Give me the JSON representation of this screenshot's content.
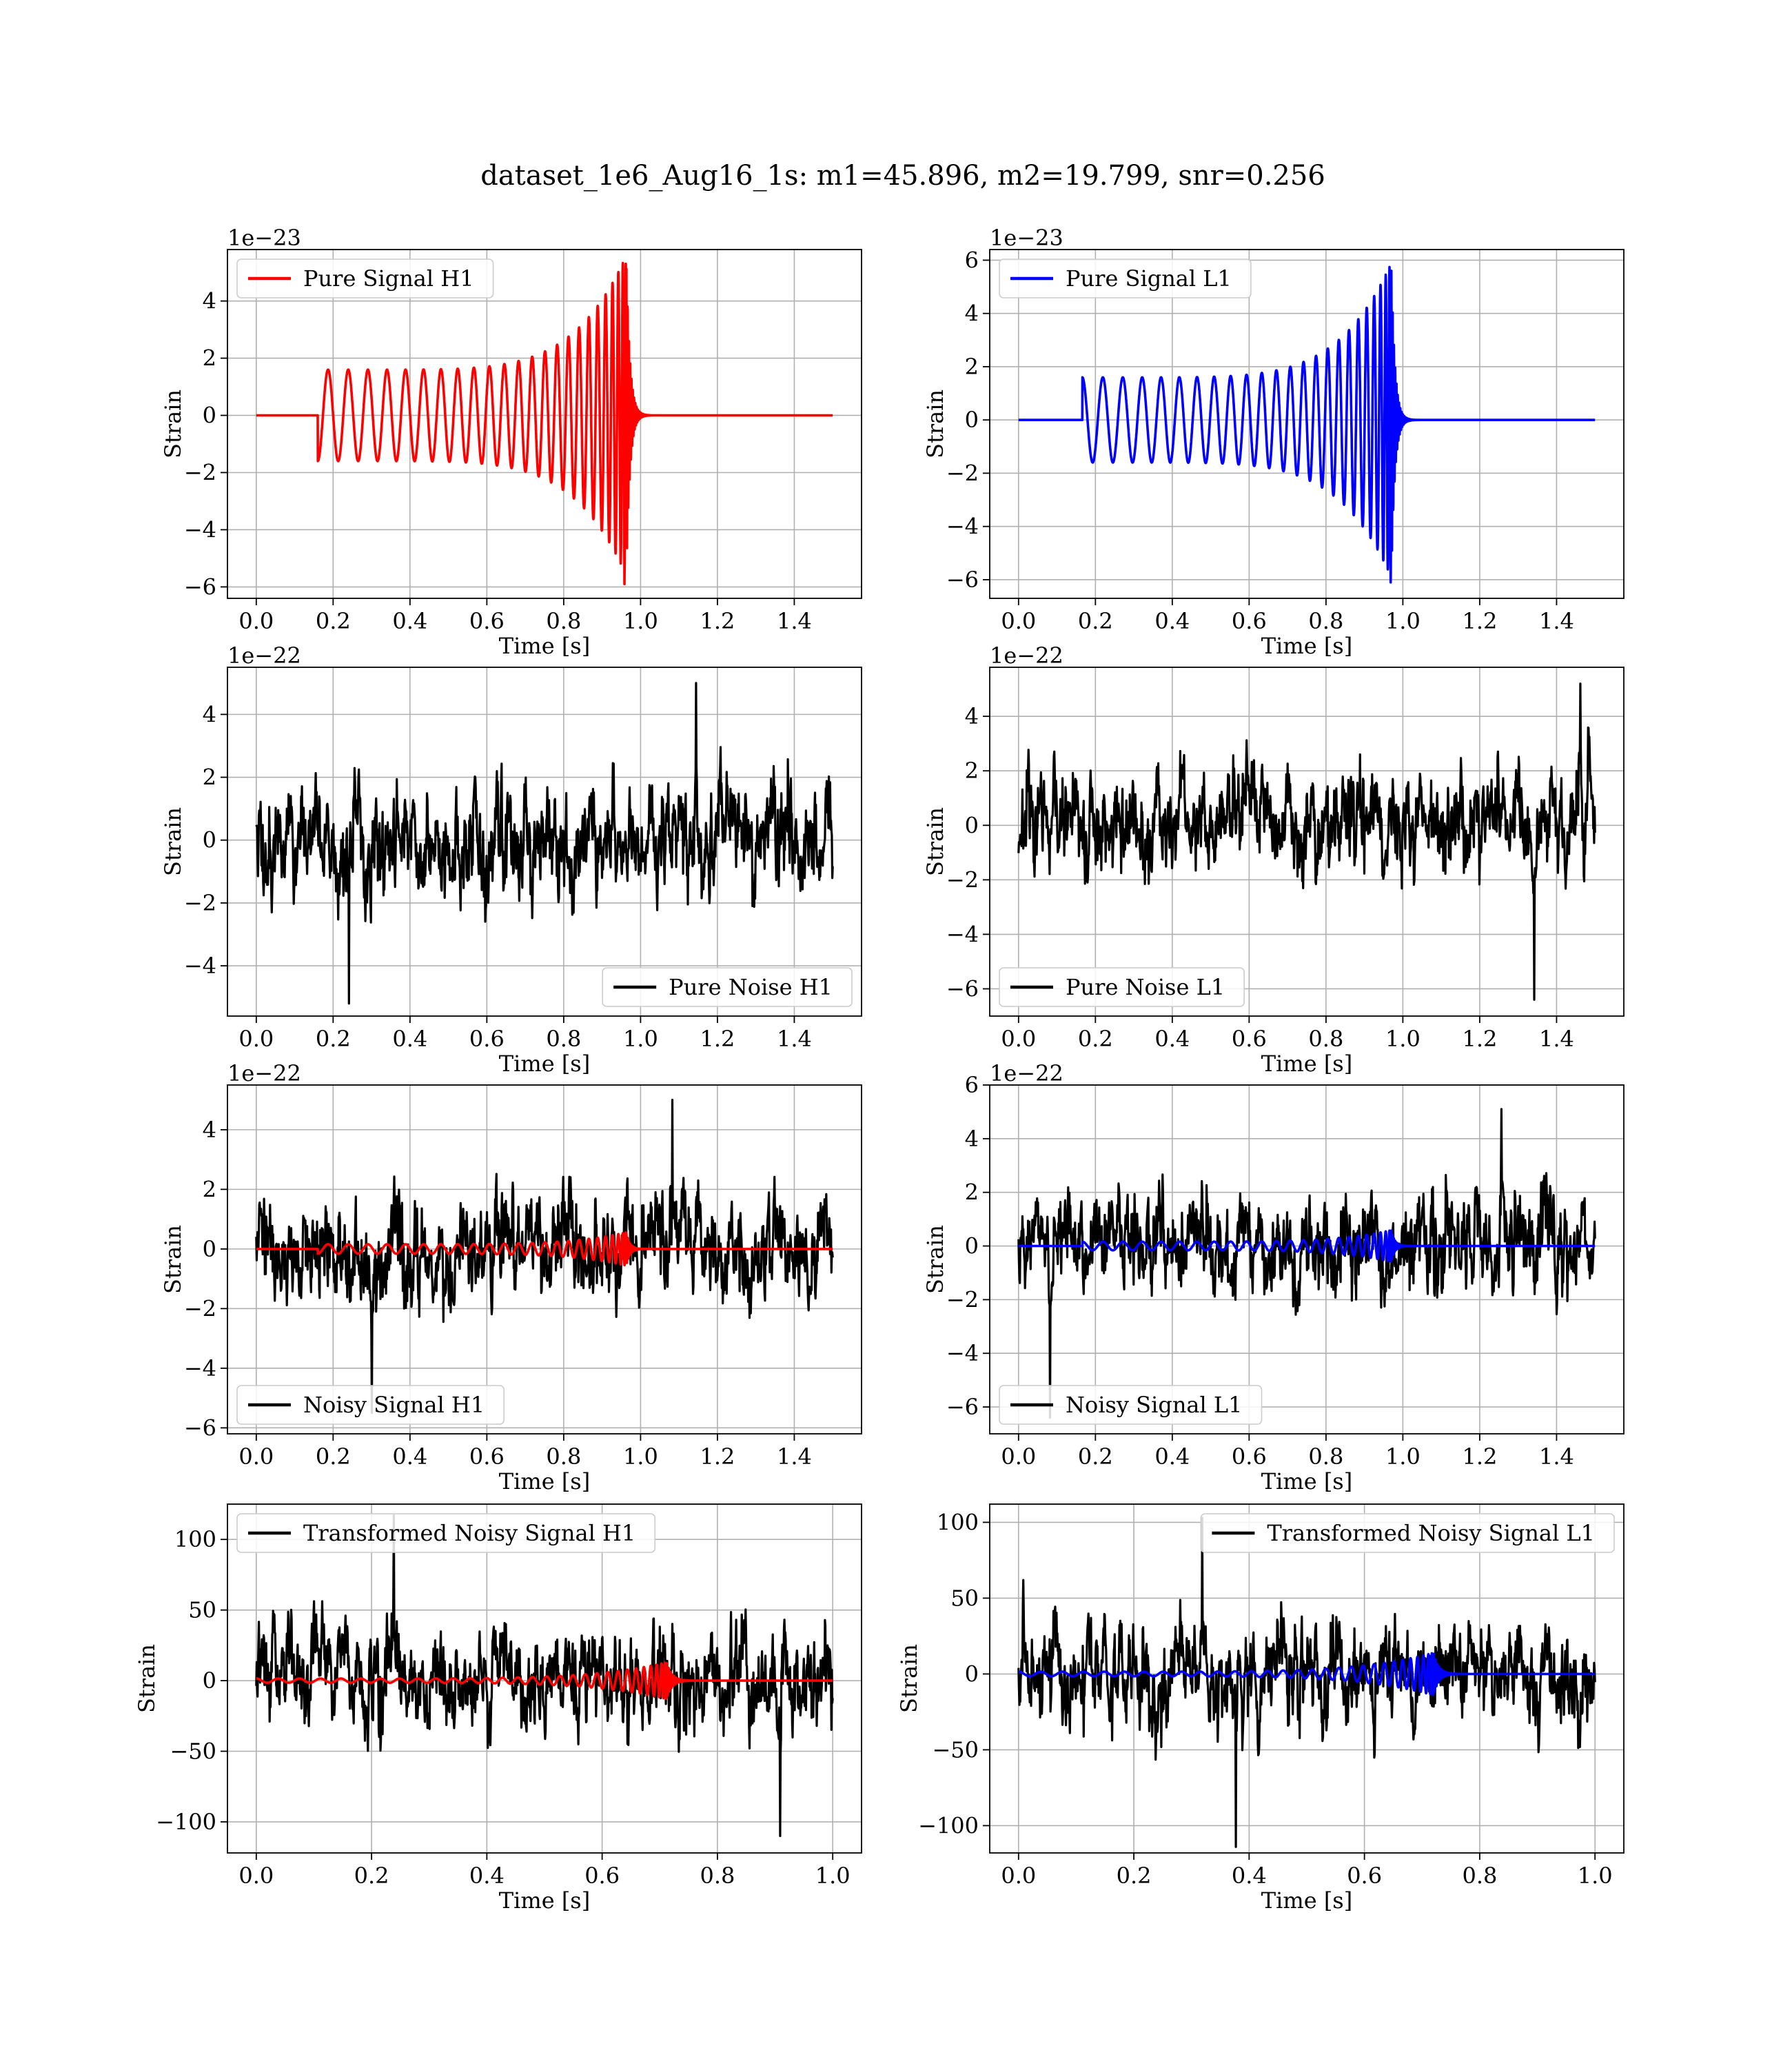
{
  "figure": {
    "title": "dataset_1e6_Aug16_1s: m1=45.896, m2=19.799, snr=0.256"
  },
  "chart_data": [
    {
      "type": "line",
      "id": "pure-signal-h1",
      "xlabel": "Time [s]",
      "ylabel": "Strain",
      "offset_text": "1e−23",
      "xlim": [
        -0.075,
        1.575
      ],
      "ylim": [
        -6.4,
        5.8
      ],
      "xticks": [
        0.0,
        0.2,
        0.4,
        0.6,
        0.8,
        1.0,
        1.2,
        1.4
      ],
      "xtick_labels": [
        "0.0",
        "0.2",
        "0.4",
        "0.6",
        "0.8",
        "1.0",
        "1.2",
        "1.4"
      ],
      "yticks": [
        -6,
        -4,
        -2,
        0,
        2,
        4
      ],
      "ytick_labels": [
        "−6",
        "−4",
        "−2",
        "0",
        "2",
        "4"
      ],
      "grid": true,
      "legend_loc": "upper left",
      "series": [
        {
          "name": "Pure Signal H1",
          "color": "#ff0000",
          "kind": "chirp",
          "x_range": [
            0.0,
            1.5
          ],
          "onset": 0.16,
          "merger": 0.963,
          "start_phase": 3.14159,
          "amplitude_start": 1.6,
          "amplitude_peak": 5.6,
          "min_peak": -5.9,
          "max_peak": 5.3,
          "cycles": 24
        }
      ]
    },
    {
      "type": "line",
      "id": "pure-signal-l1",
      "xlabel": "Time [s]",
      "ylabel": "Strain",
      "offset_text": "1e−23",
      "xlim": [
        -0.075,
        1.575
      ],
      "ylim": [
        -6.7,
        6.4
      ],
      "xticks": [
        0.0,
        0.2,
        0.4,
        0.6,
        0.8,
        1.0,
        1.2,
        1.4
      ],
      "xtick_labels": [
        "0.0",
        "0.2",
        "0.4",
        "0.6",
        "0.8",
        "1.0",
        "1.2",
        "1.4"
      ],
      "yticks": [
        -6,
        -4,
        -2,
        0,
        2,
        4,
        6
      ],
      "ytick_labels": [
        "−6",
        "−4",
        "−2",
        "0",
        "2",
        "4",
        "6"
      ],
      "grid": true,
      "legend_loc": "upper left",
      "series": [
        {
          "name": "Pure Signal L1",
          "color": "#0000ff",
          "kind": "chirp",
          "x_range": [
            0.0,
            1.5
          ],
          "onset": 0.166,
          "merger": 0.97,
          "start_phase": 0.0,
          "amplitude_start": 1.6,
          "amplitude_peak": 5.9,
          "min_peak": -6.1,
          "max_peak": 5.6,
          "cycles": 24
        }
      ]
    },
    {
      "type": "line",
      "id": "pure-noise-h1",
      "xlabel": "Time [s]",
      "ylabel": "Strain",
      "offset_text": "1e−22",
      "xlim": [
        -0.075,
        1.575
      ],
      "ylim": [
        -5.6,
        5.5
      ],
      "xticks": [
        0.0,
        0.2,
        0.4,
        0.6,
        0.8,
        1.0,
        1.2,
        1.4
      ],
      "xtick_labels": [
        "0.0",
        "0.2",
        "0.4",
        "0.6",
        "0.8",
        "1.0",
        "1.2",
        "1.4"
      ],
      "yticks": [
        -4,
        -2,
        0,
        2,
        4
      ],
      "ytick_labels": [
        "−4",
        "−2",
        "0",
        "2",
        "4"
      ],
      "grid": true,
      "legend_loc": "lower right",
      "series": [
        {
          "name": "Pure Noise H1",
          "color": "#000000",
          "kind": "noise",
          "x_range": [
            0.0,
            1.5
          ],
          "min": -5.2,
          "max": 5.0,
          "sigma": 1.6,
          "seed": 11
        }
      ]
    },
    {
      "type": "line",
      "id": "pure-noise-l1",
      "xlabel": "Time [s]",
      "ylabel": "Strain",
      "offset_text": "1e−22",
      "xlim": [
        -0.075,
        1.575
      ],
      "ylim": [
        -7.0,
        5.8
      ],
      "xticks": [
        0.0,
        0.2,
        0.4,
        0.6,
        0.8,
        1.0,
        1.2,
        1.4
      ],
      "xtick_labels": [
        "0.0",
        "0.2",
        "0.4",
        "0.6",
        "0.8",
        "1.0",
        "1.2",
        "1.4"
      ],
      "yticks": [
        -6,
        -4,
        -2,
        0,
        2,
        4
      ],
      "ytick_labels": [
        "−6",
        "−4",
        "−2",
        "0",
        "2",
        "4"
      ],
      "grid": true,
      "legend_loc": "lower left",
      "series": [
        {
          "name": "Pure Noise L1",
          "color": "#000000",
          "kind": "noise",
          "x_range": [
            0.0,
            1.5
          ],
          "min": -6.4,
          "max": 5.2,
          "sigma": 1.7,
          "seed": 23
        }
      ]
    },
    {
      "type": "line",
      "id": "noisy-signal-h1",
      "xlabel": "Time [s]",
      "ylabel": "Strain",
      "offset_text": "1e−22",
      "xlim": [
        -0.075,
        1.575
      ],
      "ylim": [
        -6.2,
        5.5
      ],
      "xticks": [
        0.0,
        0.2,
        0.4,
        0.6,
        0.8,
        1.0,
        1.2,
        1.4
      ],
      "xtick_labels": [
        "0.0",
        "0.2",
        "0.4",
        "0.6",
        "0.8",
        "1.0",
        "1.2",
        "1.4"
      ],
      "yticks": [
        -6,
        -4,
        -2,
        0,
        2,
        4
      ],
      "ytick_labels": [
        "−6",
        "−4",
        "−2",
        "0",
        "2",
        "4"
      ],
      "grid": true,
      "legend_loc": "lower left",
      "series": [
        {
          "name": "Noisy Signal H1",
          "color": "#000000",
          "kind": "noise",
          "x_range": [
            0.0,
            1.5
          ],
          "min": -5.5,
          "max": 5.0,
          "sigma": 1.6,
          "seed": 37
        },
        {
          "color": "#ff0000",
          "kind": "chirp",
          "x_range": [
            0.0,
            1.5
          ],
          "onset": 0.16,
          "merger": 0.963,
          "start_phase": 3.14159,
          "amplitude_start": 0.16,
          "amplitude_peak": 0.56,
          "cycles": 24
        }
      ]
    },
    {
      "type": "line",
      "id": "noisy-signal-l1",
      "xlabel": "Time [s]",
      "ylabel": "Strain",
      "offset_text": "1e−22",
      "xlim": [
        -0.075,
        1.575
      ],
      "ylim": [
        -7.0,
        6.0
      ],
      "xticks": [
        0.0,
        0.2,
        0.4,
        0.6,
        0.8,
        1.0,
        1.2,
        1.4
      ],
      "xtick_labels": [
        "0.0",
        "0.2",
        "0.4",
        "0.6",
        "0.8",
        "1.0",
        "1.2",
        "1.4"
      ],
      "yticks": [
        -6,
        -4,
        -2,
        0,
        2,
        4,
        6
      ],
      "ytick_labels": [
        "−6",
        "−4",
        "−2",
        "0",
        "2",
        "4",
        "6"
      ],
      "grid": true,
      "legend_loc": "lower left",
      "series": [
        {
          "name": "Noisy Signal L1",
          "color": "#000000",
          "kind": "noise",
          "x_range": [
            0.0,
            1.5
          ],
          "min": -6.4,
          "max": 5.1,
          "sigma": 1.7,
          "seed": 51
        },
        {
          "color": "#0000ff",
          "kind": "chirp",
          "x_range": [
            0.0,
            1.5
          ],
          "onset": 0.166,
          "merger": 0.97,
          "start_phase": 0.0,
          "amplitude_start": 0.16,
          "amplitude_peak": 0.59,
          "cycles": 24
        }
      ]
    },
    {
      "type": "line",
      "id": "transformed-noisy-signal-h1",
      "xlabel": "Time [s]",
      "ylabel": "Strain",
      "offset_text": "",
      "xlim": [
        -0.05,
        1.05
      ],
      "ylim": [
        -122,
        125
      ],
      "xticks": [
        0.0,
        0.2,
        0.4,
        0.6,
        0.8,
        1.0
      ],
      "xtick_labels": [
        "0.0",
        "0.2",
        "0.4",
        "0.6",
        "0.8",
        "1.0"
      ],
      "yticks": [
        -100,
        -50,
        0,
        50,
        100
      ],
      "ytick_labels": [
        "−100",
        "−50",
        "0",
        "50",
        "100"
      ],
      "grid": true,
      "legend_loc": "upper left",
      "series": [
        {
          "name": "Transformed Noisy Signal H1",
          "color": "#000000",
          "kind": "noise",
          "x_range": [
            0.0,
            1.0
          ],
          "min": -110,
          "max": 117,
          "sigma": 32,
          "seed": 67
        },
        {
          "color": "#ff0000",
          "kind": "chirp",
          "x_range": [
            0.0,
            1.0
          ],
          "onset": 0.0,
          "merger": 0.712,
          "start_phase": 0.0,
          "amplitude_start": 1.5,
          "amplitude_peak": 13,
          "cycles": 30
        }
      ]
    },
    {
      "type": "line",
      "id": "transformed-noisy-signal-l1",
      "xlabel": "Time [s]",
      "ylabel": "Strain",
      "offset_text": "",
      "xlim": [
        -0.05,
        1.05
      ],
      "ylim": [
        -118,
        112
      ],
      "xticks": [
        0.0,
        0.2,
        0.4,
        0.6,
        0.8,
        1.0
      ],
      "xtick_labels": [
        "0.0",
        "0.2",
        "0.4",
        "0.6",
        "0.8",
        "1.0"
      ],
      "yticks": [
        -100,
        -50,
        0,
        50,
        100
      ],
      "ytick_labels": [
        "−100",
        "−50",
        "0",
        "50",
        "100"
      ],
      "grid": true,
      "legend_loc": "upper right",
      "series": [
        {
          "name": "Transformed Noisy Signal L1",
          "color": "#000000",
          "kind": "noise",
          "x_range": [
            0.0,
            1.0
          ],
          "min": -114,
          "max": 103,
          "sigma": 30,
          "seed": 83
        },
        {
          "color": "#0000ff",
          "kind": "chirp",
          "x_range": [
            0.0,
            1.0
          ],
          "onset": 0.0,
          "merger": 0.72,
          "start_phase": 0.0,
          "amplitude_start": 1.5,
          "amplitude_peak": 14,
          "cycles": 30
        }
      ]
    }
  ]
}
